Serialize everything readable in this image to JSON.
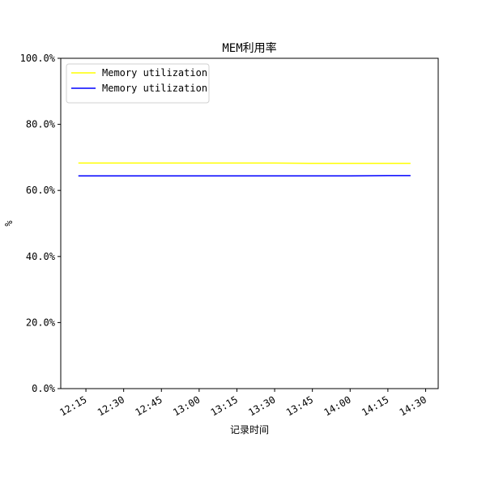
{
  "chart_data": {
    "type": "line",
    "title": "MEM利用率",
    "xlabel": "记录时间",
    "ylabel": "%",
    "ylim": [
      0,
      100
    ],
    "yticks": [
      0,
      20,
      40,
      60,
      80,
      100
    ],
    "ytick_labels": [
      "0.0%",
      "20.0%",
      "40.0%",
      "60.0%",
      "80.0%",
      "100.0%"
    ],
    "xlim": [
      "12:05",
      "14:35"
    ],
    "xticks": [
      "12:15",
      "12:30",
      "12:45",
      "13:00",
      "13:15",
      "13:30",
      "13:45",
      "14:00",
      "14:15",
      "14:30"
    ],
    "legend_position": "upper-left",
    "grid": false,
    "series": [
      {
        "name": "Memory utilization",
        "color": "#ffff00",
        "x": [
          "12:12",
          "12:30",
          "12:45",
          "13:00",
          "13:15",
          "13:30",
          "13:45",
          "14:00",
          "14:15",
          "14:24"
        ],
        "values": [
          68.3,
          68.3,
          68.3,
          68.3,
          68.3,
          68.3,
          68.2,
          68.2,
          68.2,
          68.2
        ]
      },
      {
        "name": "Memory utilization",
        "color": "#0000ff",
        "x": [
          "12:12",
          "12:30",
          "12:45",
          "13:00",
          "13:15",
          "13:30",
          "13:45",
          "14:00",
          "14:15",
          "14:24"
        ],
        "values": [
          64.4,
          64.4,
          64.4,
          64.4,
          64.4,
          64.4,
          64.4,
          64.4,
          64.5,
          64.5
        ]
      }
    ]
  }
}
